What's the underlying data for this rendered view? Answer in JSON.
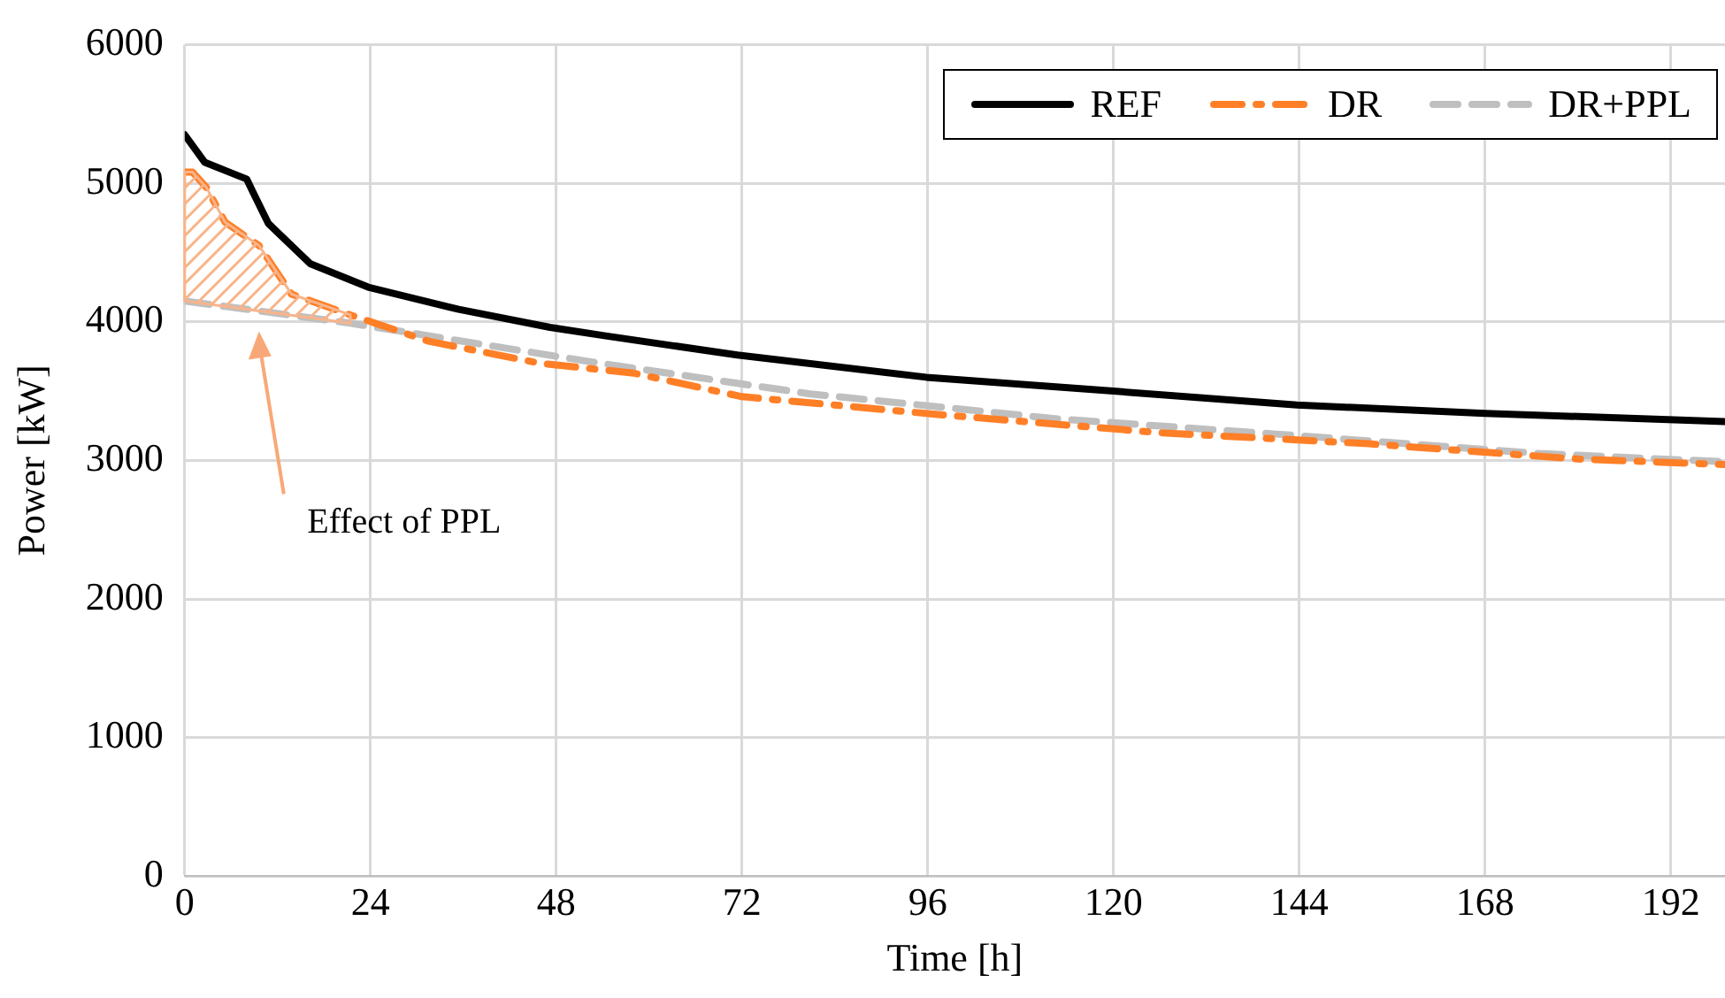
{
  "chart_data": {
    "type": "line",
    "xlabel": "Time [h]",
    "ylabel": "Power [kW]",
    "xlim": [
      0,
      199
    ],
    "xticks": [
      0,
      24,
      48,
      72,
      96,
      120,
      144,
      168,
      192
    ],
    "ylim": [
      0,
      6000
    ],
    "yticks": [
      0,
      1000,
      2000,
      3000,
      4000,
      5000,
      6000
    ],
    "grid": true,
    "legend": "top right",
    "marker": "none",
    "annotations": [
      "Effect of PPL"
    ],
    "series": [
      {
        "name": "REF",
        "color": "#000000",
        "line_style": "solid",
        "x": [
          0,
          2.6,
          8,
          8.7,
          10.8,
          16.2,
          23.7,
          35.4,
          47.2,
          54.2,
          71.4,
          95.8,
          120,
          143.7,
          168,
          199
        ],
        "values": [
          5350,
          5150,
          5030,
          4950,
          4710,
          4420,
          4250,
          4090,
          3960,
          3900,
          3760,
          3600,
          3500,
          3400,
          3340,
          3280
        ]
      },
      {
        "name": "DR",
        "color": "#ff7f27",
        "line_style": "dashdot",
        "x": [
          0,
          1,
          2.8,
          5.2,
          9.6,
          13.8,
          21.4,
          31.5,
          46,
          58,
          72,
          97.6,
          126,
          153,
          180,
          199
        ],
        "values": [
          5080,
          5080,
          4970,
          4720,
          4550,
          4200,
          4050,
          3860,
          3700,
          3630,
          3460,
          3330,
          3200,
          3120,
          3010,
          2970
        ]
      },
      {
        "name": "DR+PPL",
        "color": "#bfbfbf",
        "line_style": "dashed",
        "x": [
          0,
          21.4,
          52.6,
          80.8,
          112.7,
          141,
          175,
          199
        ],
        "values": [
          4150,
          3990,
          3710,
          3480,
          3300,
          3190,
          3050,
          2990
        ]
      }
    ]
  }
}
